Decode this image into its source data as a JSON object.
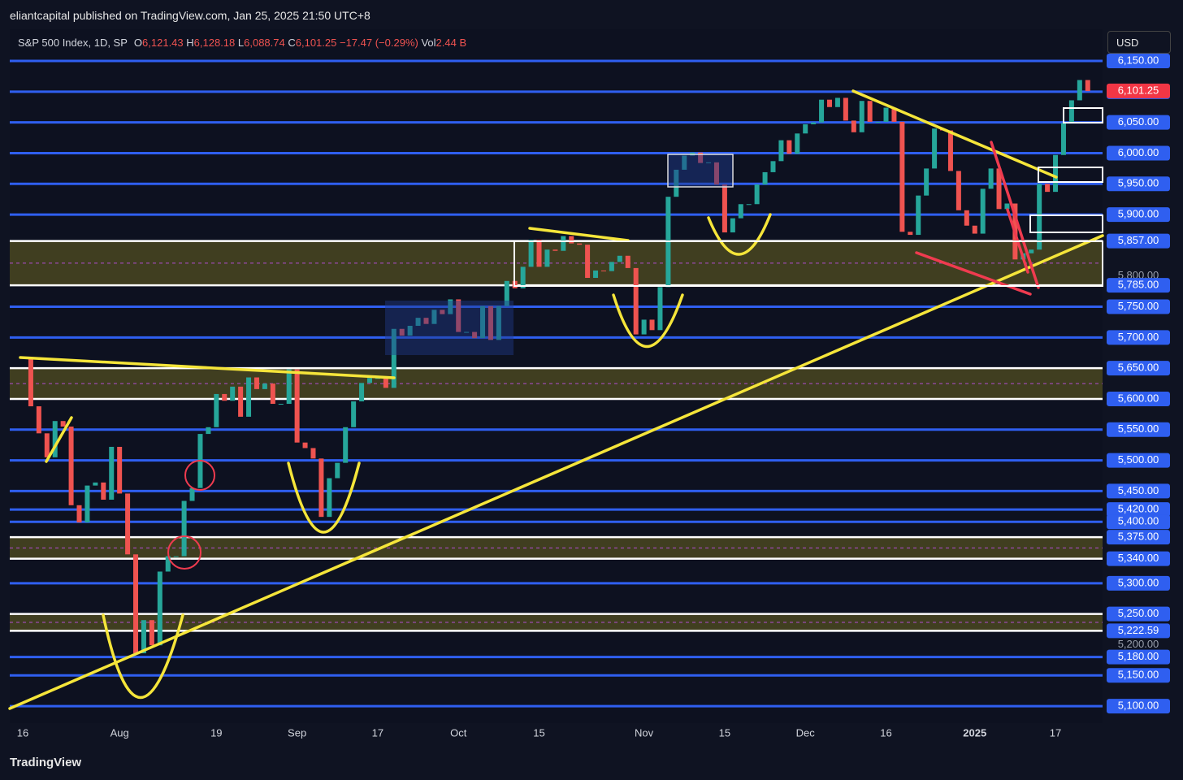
{
  "header": {
    "publisher": "eliantcapital published on TradingView.com, Jan 25, 2025 21:50 UTC+8"
  },
  "legend": {
    "symbol": "S&P 500 Index, 1D, SP",
    "o_label": "O",
    "o": "6,121.43",
    "h_label": "H",
    "h": "6,128.18",
    "l_label": "L",
    "l": "6,088.74",
    "c_label": "C",
    "c": "6,101.25",
    "change": "−17.47 (−0.29%)",
    "vol_label": "Vol",
    "vol": "2.44 B"
  },
  "currency": "USD",
  "footer": "TradingView",
  "chart_data": {
    "type": "candlestick",
    "closes": [
      5667,
      5588,
      5544,
      5505,
      5564,
      5555,
      5427,
      5399,
      5459,
      5464,
      5436,
      5522,
      5446,
      5347,
      5186,
      5240,
      5199,
      5319,
      5344,
      5344,
      5434,
      5455,
      5543,
      5554,
      5608,
      5597,
      5620,
      5571,
      5635,
      5616,
      5625,
      5592,
      5592,
      5648,
      5529,
      5520,
      5503,
      5408,
      5471,
      5496,
      5554,
      5596,
      5626,
      5634,
      5634,
      5618,
      5714,
      5703,
      5719,
      5732,
      5722,
      5745,
      5738,
      5762,
      5709,
      5709,
      5699,
      5751,
      5696,
      5751,
      5792,
      5780,
      5815,
      5859,
      5815,
      5843,
      5841,
      5865,
      5853,
      5851,
      5797,
      5809,
      5808,
      5823,
      5833,
      5813,
      5705,
      5729,
      5712,
      5782,
      5929,
      5973,
      5996,
      6001,
      5984,
      5985,
      5949,
      5871,
      5894,
      5917,
      5917,
      5949,
      5969,
      5987,
      6021,
      5999,
      6032,
      6047,
      6050,
      6087,
      6075,
      6090,
      6053,
      6034,
      6085,
      6051,
      6051,
      6074,
      6051,
      5872,
      5867,
      5931,
      5975,
      6040,
      6037,
      5971,
      5907,
      5882,
      5869,
      5942,
      5975,
      5909,
      5918,
      5827,
      5837,
      5843,
      5950,
      5937,
      5997,
      6049,
      6086,
      6119,
      6101
    ],
    "up_color": "#26a69a",
    "down_color": "#ef5350",
    "ylim": [
      5075,
      6199
    ],
    "yticks": [
      {
        "value": 6150,
        "label": "6,150.00"
      },
      {
        "value": 6100,
        "label": "6,100.00"
      },
      {
        "value": 6050,
        "label": "6,050.00"
      },
      {
        "value": 6000,
        "label": "6,000.00"
      },
      {
        "value": 5950,
        "label": "5,950.00"
      },
      {
        "value": 5900,
        "label": "5,900.00"
      },
      {
        "value": 5857,
        "label": "5,857.00"
      },
      {
        "value": 5800,
        "label": "5,800.00"
      },
      {
        "value": 5785,
        "label": "5,785.00"
      },
      {
        "value": 5750,
        "label": "5,750.00"
      },
      {
        "value": 5700,
        "label": "5,700.00"
      },
      {
        "value": 5650,
        "label": "5,650.00"
      },
      {
        "value": 5600,
        "label": "5,600.00"
      },
      {
        "value": 5550,
        "label": "5,550.00"
      },
      {
        "value": 5500,
        "label": "5,500.00"
      },
      {
        "value": 5450,
        "label": "5,450.00"
      },
      {
        "value": 5420,
        "label": "5,420.00"
      },
      {
        "value": 5400,
        "label": "5,400.00"
      },
      {
        "value": 5375,
        "label": "5,375.00"
      },
      {
        "value": 5340,
        "label": "5,340.00"
      },
      {
        "value": 5300,
        "label": "5,300.00"
      },
      {
        "value": 5250,
        "label": "5,250.00"
      },
      {
        "value": 5222.59,
        "label": "5,222.59"
      },
      {
        "value": 5200,
        "label": "5,200.00"
      },
      {
        "value": 5180,
        "label": "5,180.00"
      },
      {
        "value": 5150,
        "label": "5,150.00"
      },
      {
        "value": 5100,
        "label": "5,100.00"
      }
    ],
    "levels": [
      6150,
      6100,
      6050,
      6000,
      5950,
      5900,
      5750,
      5700,
      5550,
      5500,
      5450,
      5420,
      5400,
      5300,
      5180,
      5150,
      5100
    ],
    "zones": [
      [
        5785,
        5857
      ],
      [
        5600,
        5650
      ],
      [
        5340,
        5375
      ],
      [
        5222.59,
        5250
      ]
    ],
    "last": {
      "value": 6101.25,
      "label": "6,101.25"
    },
    "xticks": [
      {
        "value": 0,
        "label": "16"
      },
      {
        "value": 12,
        "label": "Aug"
      },
      {
        "value": 24,
        "label": "19"
      },
      {
        "value": 34,
        "label": "Sep"
      },
      {
        "value": 44,
        "label": "17"
      },
      {
        "value": 54,
        "label": "Oct"
      },
      {
        "value": 64,
        "label": "15"
      },
      {
        "value": 77,
        "label": "Nov"
      },
      {
        "value": 87,
        "label": "15"
      },
      {
        "value": 97,
        "label": "Dec"
      },
      {
        "value": 107,
        "label": "16"
      },
      {
        "value": 118,
        "label": "2025"
      },
      {
        "value": 128,
        "label": "17"
      }
    ]
  }
}
